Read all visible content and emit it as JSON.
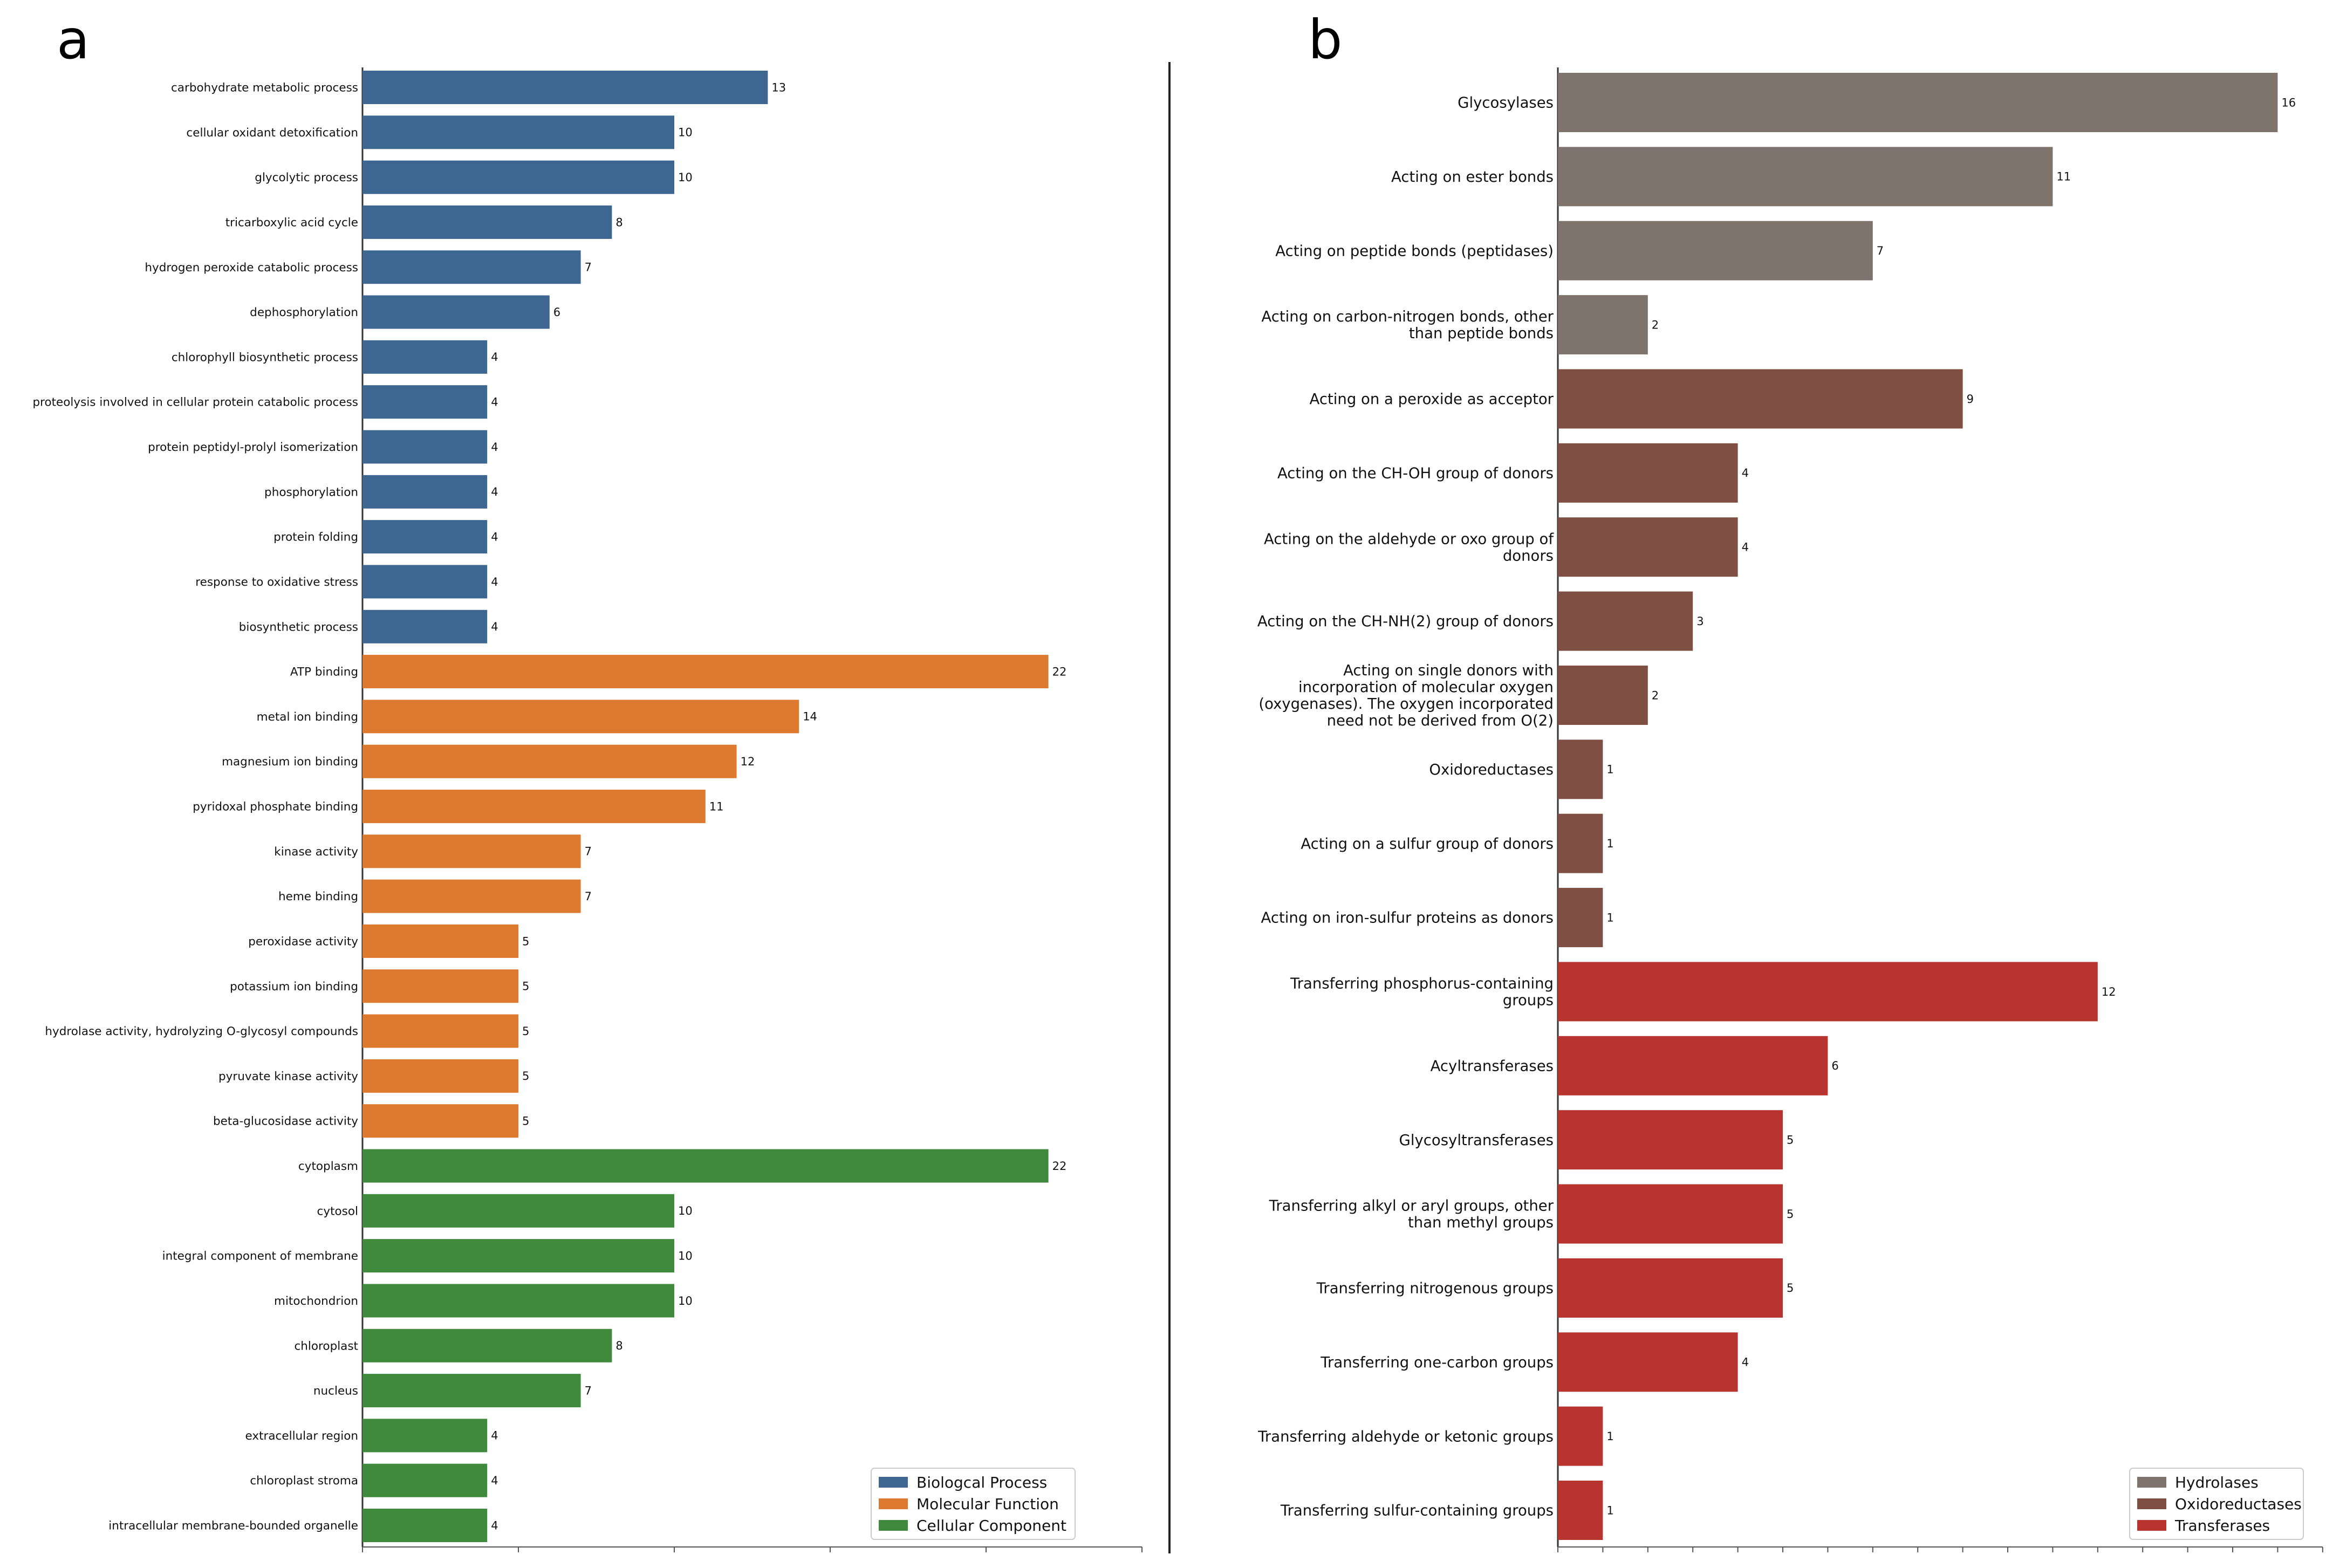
{
  "figure": {
    "panel_a_letter": "a",
    "panel_b_letter": "b"
  },
  "chart_data": [
    {
      "type": "bar",
      "orientation": "horizontal",
      "panel": "a",
      "title": "",
      "xlabel": "",
      "ylabel": "",
      "xlim": [
        0,
        25
      ],
      "grid": false,
      "legend_position": "bottom-right",
      "legend": [
        {
          "name": "Biologcal Process",
          "color": "#3d6690"
        },
        {
          "name": "Molecular Function",
          "color": "#de7a2f"
        },
        {
          "name": "Cellular Component",
          "color": "#3f8a3c"
        }
      ],
      "categories": [
        "carbohydrate metabolic process",
        "cellular oxidant detoxification",
        "glycolytic process",
        "tricarboxylic acid cycle",
        "hydrogen peroxide catabolic process",
        "dephosphorylation",
        "chlorophyll biosynthetic process",
        "proteolysis involved in cellular protein catabolic process",
        "protein peptidyl-prolyl isomerization",
        "phosphorylation",
        "protein folding",
        "response to oxidative stress",
        "biosynthetic process",
        "ATP binding",
        "metal ion binding",
        "magnesium ion binding",
        "pyridoxal phosphate binding",
        "kinase activity",
        "heme binding",
        "peroxidase activity",
        "potassium ion binding",
        "hydrolase activity, hydrolyzing O-glycosyl compounds",
        "pyruvate kinase activity",
        "beta-glucosidase activity",
        "cytoplasm",
        "cytosol",
        "integral component of membrane",
        "mitochondrion",
        "chloroplast",
        "nucleus",
        "extracellular region",
        "chloroplast stroma",
        "intracellular membrane-bounded organelle"
      ],
      "values": [
        13,
        10,
        10,
        8,
        7,
        6,
        4,
        4,
        4,
        4,
        4,
        4,
        4,
        22,
        14,
        12,
        11,
        7,
        7,
        5,
        5,
        5,
        5,
        5,
        22,
        10,
        10,
        10,
        8,
        7,
        4,
        4,
        4
      ],
      "groups": [
        0,
        0,
        0,
        0,
        0,
        0,
        0,
        0,
        0,
        0,
        0,
        0,
        0,
        1,
        1,
        1,
        1,
        1,
        1,
        1,
        1,
        1,
        1,
        1,
        2,
        2,
        2,
        2,
        2,
        2,
        2,
        2,
        2
      ]
    },
    {
      "type": "bar",
      "orientation": "horizontal",
      "panel": "b",
      "title": "",
      "xlabel": "",
      "ylabel": "",
      "xlim": [
        0,
        17
      ],
      "grid": false,
      "legend_position": "bottom-right",
      "legend": [
        {
          "name": "Hydrolases",
          "color": "#7f736d"
        },
        {
          "name": "Oxidoreductases",
          "color": "#7e4f42"
        },
        {
          "name": "Transferases",
          "color": "#b73430"
        }
      ],
      "categories": [
        [
          "Glycosylases"
        ],
        [
          "Acting on ester bonds"
        ],
        [
          "Acting on peptide bonds (peptidases)"
        ],
        [
          "Acting on carbon-nitrogen bonds, other",
          "than peptide bonds"
        ],
        [
          "Acting on a peroxide as acceptor"
        ],
        [
          "Acting on the CH-OH group of donors"
        ],
        [
          "Acting on the aldehyde or oxo group of",
          "donors"
        ],
        [
          "Acting on the CH-NH(2) group of donors"
        ],
        [
          "Acting on single donors with",
          "incorporation of molecular oxygen",
          "(oxygenases). The oxygen incorporated",
          "need not be derived from O(2)"
        ],
        [
          "Oxidoreductases"
        ],
        [
          "Acting on a sulfur group of donors"
        ],
        [
          "Acting on iron-sulfur proteins as donors"
        ],
        [
          "Transferring phosphorus-containing",
          "groups"
        ],
        [
          "Acyltransferases"
        ],
        [
          "Glycosyltransferases"
        ],
        [
          "Transferring alkyl or aryl groups, other",
          "than methyl groups"
        ],
        [
          "Transferring nitrogenous groups"
        ],
        [
          "Transferring one-carbon groups"
        ],
        [
          "Transferring aldehyde or ketonic groups"
        ],
        [
          "Transferring sulfur-containing groups"
        ]
      ],
      "values": [
        16,
        11,
        7,
        2,
        9,
        4,
        4,
        3,
        2,
        1,
        1,
        1,
        12,
        6,
        5,
        5,
        5,
        4,
        1,
        1
      ],
      "groups": [
        0,
        0,
        0,
        0,
        1,
        1,
        1,
        1,
        1,
        1,
        1,
        1,
        2,
        2,
        2,
        2,
        2,
        2,
        2,
        2
      ]
    }
  ]
}
